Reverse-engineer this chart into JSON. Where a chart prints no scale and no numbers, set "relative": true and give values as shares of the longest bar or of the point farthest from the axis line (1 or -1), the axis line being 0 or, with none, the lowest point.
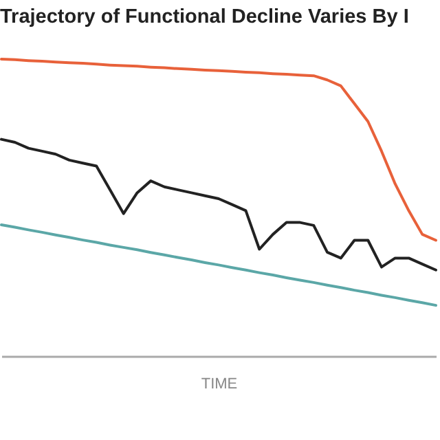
{
  "chart_data": {
    "type": "line",
    "title": "Trajectory of Functional Decline Varies By I",
    "xlabel": "TIME",
    "relative": true,
    "legend": false,
    "marker": "none",
    "line_style": "solid",
    "categories": [
      null,
      null,
      null,
      null,
      null,
      null,
      null,
      null,
      null,
      null,
      null,
      null,
      null,
      null,
      null,
      null,
      null,
      null,
      null,
      null,
      null,
      null,
      null,
      null,
      null,
      null,
      null,
      null,
      null,
      null,
      null,
      null,
      null
    ],
    "series": [
      {
        "color": "#e8613a",
        "values": [
          1.0,
          0.998,
          0.995,
          0.993,
          0.99,
          0.988,
          0.986,
          0.983,
          0.98,
          0.978,
          0.976,
          0.973,
          0.971,
          0.968,
          0.966,
          0.963,
          0.961,
          0.959,
          0.956,
          0.954,
          0.951,
          0.949,
          0.946,
          0.944,
          0.93,
          0.91,
          0.85,
          0.79,
          0.69,
          0.58,
          0.49,
          0.41,
          0.39
        ]
      },
      {
        "color": "#222222",
        "values": [
          0.73,
          0.72,
          0.7,
          0.69,
          0.68,
          0.66,
          0.65,
          0.64,
          0.56,
          0.48,
          0.55,
          0.59,
          0.57,
          0.56,
          0.55,
          0.54,
          0.53,
          0.51,
          0.49,
          0.36,
          0.41,
          0.45,
          0.45,
          0.44,
          0.35,
          0.33,
          0.39,
          0.39,
          0.3,
          0.33,
          0.33,
          0.31,
          0.29
        ]
      },
      {
        "color": "#5ba7a7",
        "values": [
          0.442,
          0.434,
          0.425,
          0.417,
          0.408,
          0.4,
          0.391,
          0.383,
          0.374,
          0.366,
          0.358,
          0.349,
          0.341,
          0.332,
          0.324,
          0.315,
          0.307,
          0.298,
          0.29,
          0.281,
          0.273,
          0.264,
          0.256,
          0.248,
          0.239,
          0.231,
          0.222,
          0.214,
          0.205,
          0.197,
          0.188,
          0.18,
          0.171
        ]
      }
    ]
  }
}
